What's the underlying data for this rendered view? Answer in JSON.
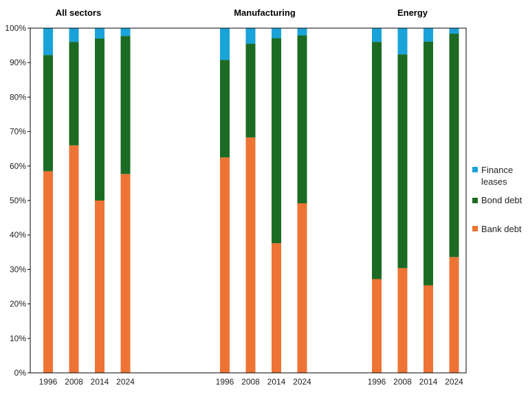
{
  "chart_data": {
    "type": "bar",
    "stacked": true,
    "ylim": [
      0,
      100
    ],
    "y_ticks": [
      "0%",
      "10%",
      "20%",
      "30%",
      "40%",
      "50%",
      "60%",
      "70%",
      "80%",
      "90%",
      "100%"
    ],
    "grid": false,
    "legend_position": "right",
    "groups": [
      {
        "title": "All sectors",
        "categories": [
          "1996",
          "2008",
          "2014",
          "2024"
        ],
        "series": [
          {
            "name": "Bank debt",
            "values": [
              58.5,
              66,
              50,
              57.7
            ]
          },
          {
            "name": "Bond debt",
            "values": [
              33.7,
              30,
              47,
              40
            ]
          },
          {
            "name": "Finance leases",
            "values": [
              7.8,
              4,
              3,
              2.3
            ]
          }
        ]
      },
      {
        "title": "Manufacturing",
        "categories": [
          "1996",
          "2008",
          "2014",
          "2024"
        ],
        "series": [
          {
            "name": "Bank debt",
            "values": [
              62.5,
              68.3,
              37.6,
              49.2
            ]
          },
          {
            "name": "Bond debt",
            "values": [
              28.3,
              27.2,
              59.5,
              48.7
            ]
          },
          {
            "name": "Finance leases",
            "values": [
              9.2,
              4.5,
              2.9,
              2.1
            ]
          }
        ]
      },
      {
        "title": "Energy",
        "categories": [
          "1996",
          "2008",
          "2014",
          "2024"
        ],
        "series": [
          {
            "name": "Bank debt",
            "values": [
              27.2,
              30.4,
              25.4,
              33.6
            ]
          },
          {
            "name": "Bond debt",
            "values": [
              68.8,
              62,
              70.7,
              64.8
            ]
          },
          {
            "name": "Finance leases",
            "values": [
              4,
              7.6,
              3.9,
              1.6
            ]
          }
        ]
      }
    ],
    "legend": [
      "Finance leases",
      "Bond debt",
      "Bank debt"
    ],
    "colors": {
      "Bank debt": "#ed7434",
      "Bond debt": "#1b6b24",
      "Finance leases": "#1aa3d9"
    }
  }
}
